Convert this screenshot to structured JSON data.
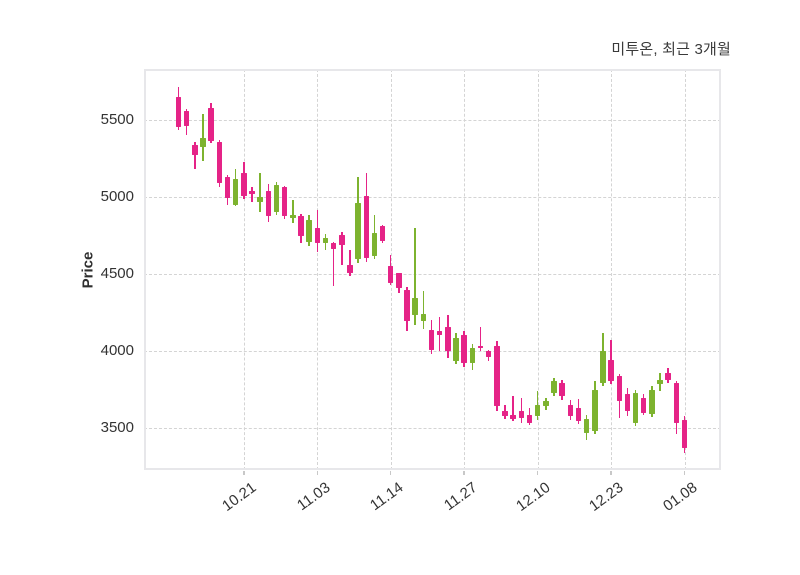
{
  "chart_data": {
    "type": "candlestick",
    "title": "미투온, 최근 3개월",
    "ylabel": "Price",
    "xlabel": "",
    "grid": "dashed-both-axes",
    "legend": "none",
    "ylim": [
      3230,
      5830
    ],
    "y_ticks": [
      5500,
      5000,
      4500,
      4000,
      3500
    ],
    "x_ticks": [
      {
        "label": "10.21",
        "index": 8
      },
      {
        "label": "11.03",
        "index": 17
      },
      {
        "label": "11.14",
        "index": 26
      },
      {
        "label": "11.27",
        "index": 35
      },
      {
        "label": "12.10",
        "index": 44
      },
      {
        "label": "12.23",
        "index": 53
      },
      {
        "label": "01.08",
        "index": 62
      }
    ],
    "colors": {
      "up": "#7db32f",
      "down": "#e52387",
      "grid": "#d4d4d4",
      "text": "#333333",
      "spine": "#e7e7ea"
    },
    "candles_format": [
      "open",
      "high",
      "low",
      "close"
    ],
    "candles": [
      [
        5650,
        5715,
        5435,
        5455
      ],
      [
        5555,
        5570,
        5400,
        5460
      ],
      [
        5340,
        5360,
        5185,
        5275
      ],
      [
        5325,
        5540,
        5230,
        5380
      ],
      [
        5580,
        5610,
        5350,
        5360
      ],
      [
        5360,
        5370,
        5065,
        5090
      ],
      [
        5130,
        5145,
        4950,
        4995
      ],
      [
        4950,
        5185,
        4940,
        5120
      ],
      [
        5155,
        5230,
        4990,
        5005
      ],
      [
        5040,
        5065,
        4970,
        5020
      ],
      [
        4970,
        5155,
        4905,
        5000
      ],
      [
        5040,
        5085,
        4840,
        4875
      ],
      [
        4905,
        5095,
        4885,
        5075
      ],
      [
        5065,
        5070,
        4855,
        4875
      ],
      [
        4865,
        4980,
        4830,
        4885
      ],
      [
        4875,
        4890,
        4700,
        4745
      ],
      [
        4710,
        4885,
        4680,
        4850
      ],
      [
        4800,
        4915,
        4645,
        4700
      ],
      [
        4700,
        4760,
        4655,
        4735
      ],
      [
        4700,
        4710,
        4420,
        4660
      ],
      [
        4755,
        4775,
        4560,
        4690
      ],
      [
        4560,
        4655,
        4485,
        4505
      ],
      [
        4595,
        5130,
        4570,
        4960
      ],
      [
        5005,
        5155,
        4580,
        4605
      ],
      [
        4615,
        4885,
        4600,
        4765
      ],
      [
        4810,
        4820,
        4700,
        4715
      ],
      [
        4550,
        4625,
        4430,
        4440
      ],
      [
        4505,
        4510,
        4375,
        4410
      ],
      [
        4400,
        4420,
        4130,
        4195
      ],
      [
        4235,
        4800,
        4170,
        4345
      ],
      [
        4195,
        4390,
        4145,
        4245
      ],
      [
        4140,
        4205,
        3980,
        4010
      ],
      [
        4130,
        4225,
        4000,
        4105
      ],
      [
        4160,
        4235,
        3955,
        4000
      ],
      [
        3935,
        4120,
        3915,
        4085
      ],
      [
        4105,
        4130,
        3900,
        3925
      ],
      [
        3925,
        4045,
        3880,
        4020
      ],
      [
        4035,
        4160,
        4000,
        4020
      ],
      [
        4000,
        4010,
        3935,
        3960
      ],
      [
        4035,
        4065,
        3610,
        3645
      ],
      [
        3610,
        3655,
        3560,
        3580
      ],
      [
        3590,
        3710,
        3545,
        3560
      ],
      [
        3610,
        3695,
        3535,
        3570
      ],
      [
        3585,
        3635,
        3520,
        3535
      ],
      [
        3580,
        3740,
        3555,
        3655
      ],
      [
        3645,
        3695,
        3620,
        3675
      ],
      [
        3730,
        3825,
        3710,
        3805
      ],
      [
        3795,
        3815,
        3685,
        3710
      ],
      [
        3655,
        3685,
        3555,
        3580
      ],
      [
        3635,
        3690,
        3525,
        3545
      ],
      [
        3470,
        3590,
        3425,
        3560
      ],
      [
        3480,
        3805,
        3460,
        3750
      ],
      [
        3795,
        4120,
        3775,
        4000
      ],
      [
        3945,
        4070,
        3785,
        3805
      ],
      [
        3840,
        3850,
        3570,
        3675
      ],
      [
        3720,
        3760,
        3580,
        3610
      ],
      [
        3535,
        3750,
        3515,
        3730
      ],
      [
        3695,
        3720,
        3585,
        3600
      ],
      [
        3590,
        3775,
        3570,
        3750
      ],
      [
        3785,
        3860,
        3740,
        3815
      ],
      [
        3860,
        3890,
        3795,
        3815
      ],
      [
        3795,
        3805,
        3460,
        3535
      ],
      [
        3555,
        3580,
        3340,
        3375
      ]
    ]
  }
}
